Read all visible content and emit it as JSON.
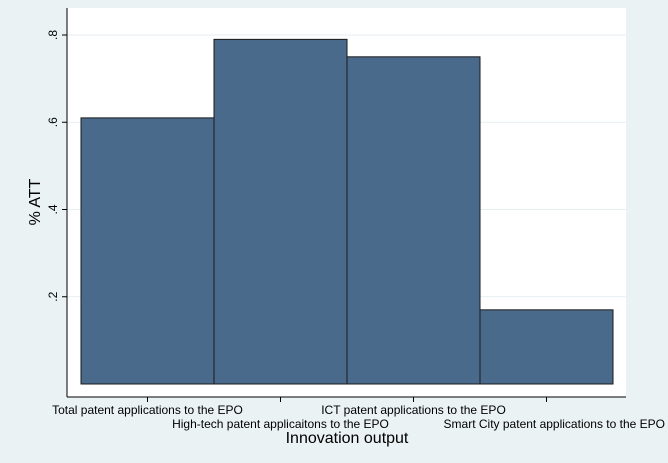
{
  "chart_data": {
    "type": "bar",
    "categories": [
      "Total patent applications to the EPO",
      "High-tech patent applicaitons to the EPO",
      "ICT patent applications to the EPO",
      "Smart City patent applications to the EPO"
    ],
    "values": [
      0.61,
      0.79,
      0.75,
      0.17
    ],
    "xlabel": "Innovation output",
    "ylabel": "% ATT",
    "ylim": [
      0,
      0.8
    ],
    "yticks": [
      0.2,
      0.4,
      0.6,
      0.8
    ],
    "ytick_labels": [
      ".2",
      ".4",
      ".6",
      ".8"
    ],
    "grid": true,
    "colors": {
      "bar_fill": "#4a6a8c",
      "bar_stroke": "#1a1a1a",
      "plot_bg": "#ffffff",
      "page_bg": "#eaf2f3",
      "grid": "#e6eef0"
    }
  }
}
